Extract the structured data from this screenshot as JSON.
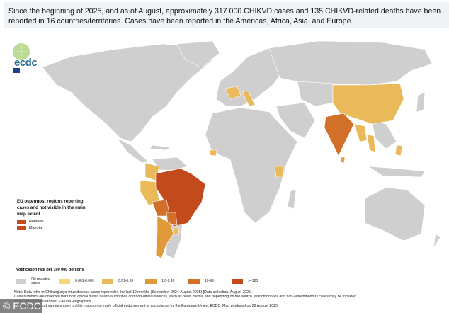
{
  "banner": {
    "text": "Since the beginning of 2025, and as of August, approximately 317 000 CHIKVD cases and 135 CHIKVD-related deaths have been reported in 16 countries/territories. Cases have been reported in the Americas, Africa, Asia, and Europe."
  },
  "logo": {
    "text": "ecdc",
    "icon": "ecdc-globe-logo"
  },
  "eu_regions": {
    "title": "EU outermost regions reporting cases and not visible in the main map extent",
    "items": [
      {
        "label": "Reunion",
        "color": "#c24a1c"
      },
      {
        "label": "Mayotte",
        "color": "#c24a1c"
      }
    ]
  },
  "legend": {
    "title": "Notification rate per 100 000 persons",
    "items": [
      {
        "label": "No reported cases",
        "color": "#cfcfcf"
      },
      {
        "label": "0.001-0.009",
        "color": "#f3d77a"
      },
      {
        "label": "0.01-0.99",
        "color": "#e9b95a"
      },
      {
        "label": "1.0-9.99",
        "color": "#e09a3a"
      },
      {
        "label": "10-99",
        "color": "#d2702a"
      },
      {
        "label": ">=100",
        "color": "#c24a1c"
      }
    ]
  },
  "notes": [
    "Note: Data refer to Chikungunya virus disease cases reported in the last 12 months (September 2024-August 2025) [Data collection: August 2025].",
    "Case numbers are collected from both official public health authorities and non-official sources, such as news media, and depending on the source, autochthonous and non-autochthonous cases may be included",
    "Administrative boundaries: © EuroGeographics",
    "The boundaries and names shown on this map do not imply official endorsement or acceptance by the European Union. ECDC. Map produced on 22 August 2025"
  ],
  "credit": "© ECDC"
}
